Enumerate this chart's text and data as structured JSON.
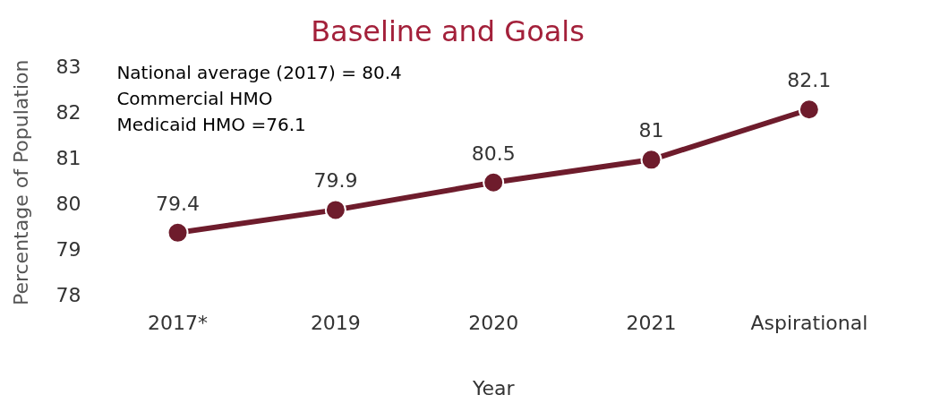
{
  "chart_data": {
    "type": "line",
    "title": "Baseline and Goals",
    "xlabel": "Year",
    "ylabel": "Percentage of Population",
    "categories": [
      "2017*",
      "2019",
      "2020",
      "2021",
      "Aspirational"
    ],
    "series": [
      {
        "color": "#6e1c2c",
        "values": [
          79.4,
          79.9,
          80.5,
          81,
          82.1
        ]
      }
    ],
    "ylim": [
      78,
      83
    ],
    "yticks": [
      78,
      79,
      80,
      81,
      82,
      83
    ],
    "grid": false,
    "legend": false,
    "marker": "circle",
    "line_style": "solid",
    "data_labels": true,
    "annotations": [
      "National average (2017) = 80.4",
      "Commercial HMO",
      "Medicaid HMO =76.1"
    ]
  }
}
